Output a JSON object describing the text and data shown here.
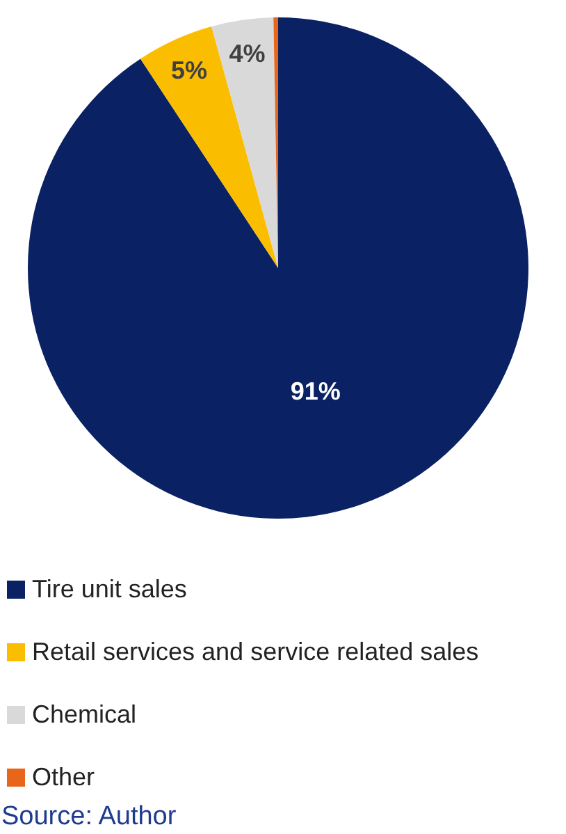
{
  "chart_data": {
    "type": "pie",
    "categories": [
      "Tire unit sales",
      "Retail services and service related sales",
      "Chemical",
      "Other"
    ],
    "values": [
      91,
      5,
      4,
      0.3
    ],
    "colors": [
      "#0a2163",
      "#fbbd00",
      "#d9d9d9",
      "#e8661a"
    ],
    "value_labels": [
      "91%",
      "5%",
      "4%",
      null
    ],
    "legend": "bottom",
    "annotations": [
      "Source: Author"
    ]
  }
}
